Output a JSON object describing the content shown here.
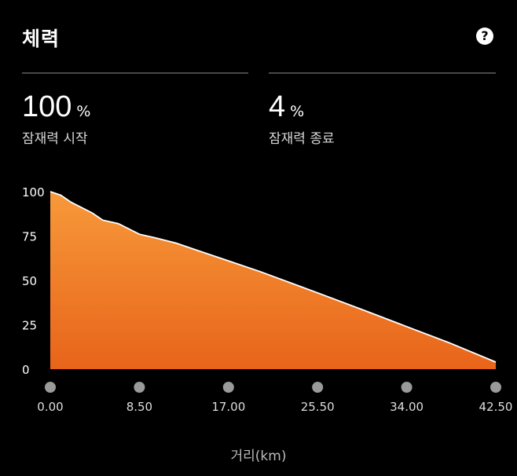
{
  "header": {
    "title": "체력",
    "help_icon": "help-circle-icon"
  },
  "stats": {
    "start": {
      "value": "100",
      "unit": "%",
      "label": "잠재력 시작"
    },
    "end": {
      "value": "4",
      "unit": "%",
      "label": "잠재력 종료"
    }
  },
  "colors": {
    "background": "#000000",
    "fill_top": "#f7993a",
    "fill_bottom": "#e8641a",
    "line": "#ffffff",
    "marker": "#9a9a9a"
  },
  "chart_data": {
    "type": "area",
    "xlabel": "거리(km)",
    "ylabel": "",
    "xlim": [
      0,
      42.5
    ],
    "ylim": [
      0,
      100
    ],
    "y_ticks": [
      "0",
      "25",
      "50",
      "75",
      "100"
    ],
    "x_ticks": [
      "0.00",
      "8.50",
      "17.00",
      "25.50",
      "34.00",
      "42.50"
    ],
    "x": [
      0,
      1,
      2,
      4,
      5,
      6.5,
      8.5,
      10,
      12,
      14,
      17,
      20,
      25.5,
      30,
      34,
      38,
      42.5
    ],
    "y": [
      100,
      98,
      94,
      88,
      84,
      82,
      76,
      74,
      71,
      67,
      61,
      55,
      43,
      33,
      24,
      15,
      4
    ]
  }
}
